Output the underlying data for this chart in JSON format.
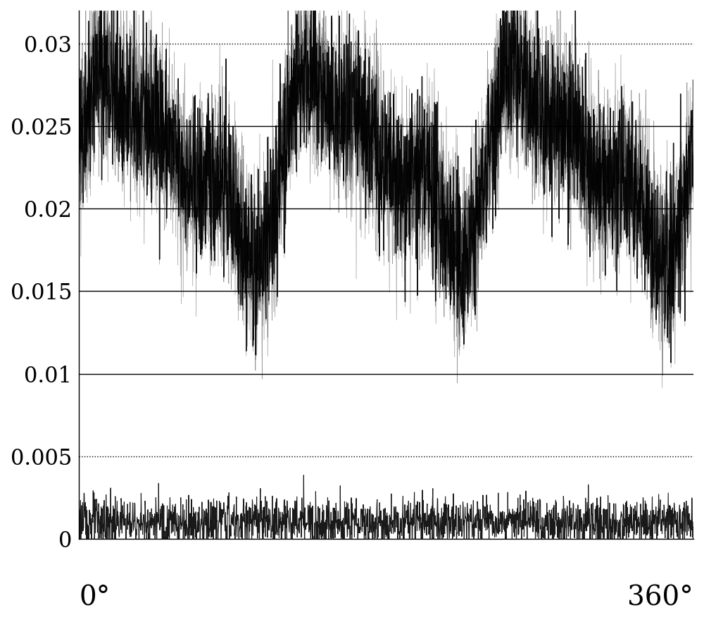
{
  "title": "",
  "xlabel_left": "0°",
  "xlabel_right": "360°",
  "ylabel_ticks": [
    0,
    0.005,
    0.01,
    0.015,
    0.02,
    0.025,
    0.03
  ],
  "ylim": [
    0,
    0.032
  ],
  "xlim": [
    0,
    360
  ],
  "label_20": "20",
  "bg_color": "#ffffff",
  "signal_color": "#000000",
  "grid_solid_levels": [
    0.01,
    0.015,
    0.02,
    0.025
  ],
  "grid_dotted_levels": [
    0.005,
    0.03
  ],
  "mean_value": 0.023,
  "noise_amplitude": 0.0025,
  "pulsation_amplitude": 0.006
}
